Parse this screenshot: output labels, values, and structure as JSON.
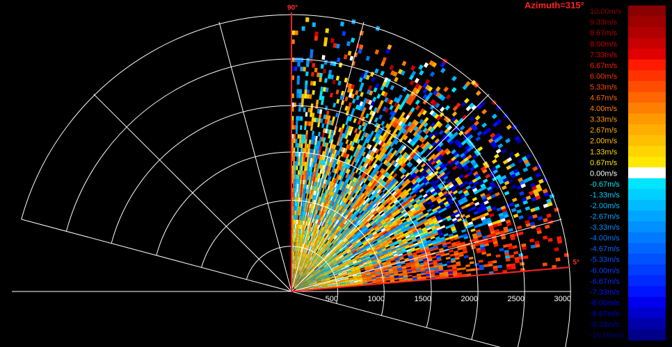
{
  "chart_data": {
    "type": "heatmap",
    "title": "Azimuth=315°",
    "projection": "RHI polar sector (range vs elevation)",
    "range_axis": {
      "ticks": [
        500,
        1000,
        1500,
        2000,
        2500,
        3000
      ],
      "tick_labels": [
        "500",
        "1000",
        "1500",
        "2000",
        "2500",
        "3000"
      ],
      "max": 3000
    },
    "elevation_scan": {
      "start_deg": 5,
      "end_deg": 90,
      "start_label": "5°",
      "end_label": "90°"
    },
    "grid": true,
    "colorbar": {
      "unit": "m/s",
      "labels": [
        "10.00m/s",
        "9.33m/s",
        "8.67m/s",
        "8.00m/s",
        "7.33m/s",
        "6.67m/s",
        "6.00m/s",
        "5.33m/s",
        "4.67m/s",
        "4.00m/s",
        "3.33m/s",
        "2.67m/s",
        "2.00m/s",
        "1.33m/s",
        "0.67m/s",
        "0.00m/s",
        "-0.67m/s",
        "-1.33m/s",
        "-2.00m/s",
        "-2.67m/s",
        "-3.33m/s",
        "-4.00m/s",
        "-4.67m/s",
        "-5.33m/s",
        "-6.00m/s",
        "-6.67m/s",
        "-7.33m/s",
        "-8.00m/s",
        "-8.67m/s",
        "-9.33m/s",
        "-10.00m/s"
      ],
      "colors": [
        "#8b0000",
        "#9e0000",
        "#b00000",
        "#c80000",
        "#e00000",
        "#ff1a00",
        "#ff3300",
        "#ff4d00",
        "#ff6600",
        "#ff7f00",
        "#ff9900",
        "#ffad00",
        "#ffc000",
        "#ffd400",
        "#ffe800",
        "#ffffff",
        "#00e5ff",
        "#00d0ff",
        "#00bbff",
        "#00a5ff",
        "#0090ff",
        "#007aff",
        "#0066ff",
        "#0052ff",
        "#003dff",
        "#0029ff",
        "#0014ff",
        "#0000ee",
        "#0000cc",
        "#0000aa",
        "#000088"
      ]
    }
  }
}
